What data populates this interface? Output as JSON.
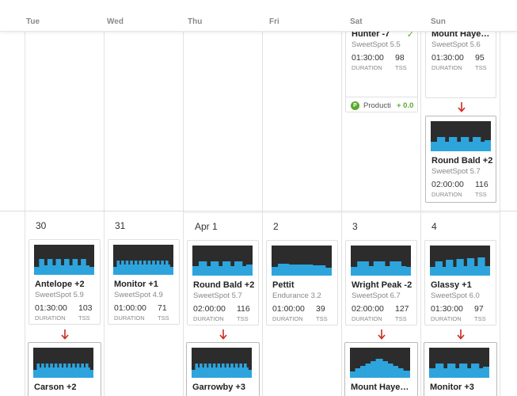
{
  "colors": {
    "graph_bg": "#2c2c2c",
    "graph_bar": "#2ea4dd",
    "arrow": "#cc2a1f",
    "check": "#5aa92e"
  },
  "days": [
    "Tue",
    "Wed",
    "Thu",
    "Fri",
    "Sat",
    "Sun"
  ],
  "week2_dates": [
    "30",
    "31",
    "Apr 1",
    "2",
    "3",
    "4"
  ],
  "labels": {
    "duration": "DURATION",
    "tss": "TSS"
  },
  "week1_sat": {
    "title": "Hunter -7",
    "subtitle": "SweetSpot 5.5",
    "duration": "01:30:00",
    "tss": "98",
    "completed_icon": "checkmark-icon",
    "check_glyph": "✓",
    "productivity": {
      "icon_letter": "P",
      "label": "Producti",
      "value": "+ 0.0"
    }
  },
  "week1_sun": [
    {
      "title": "Mount Haye…",
      "subtitle": "SweetSpot 5.6",
      "duration": "01:30:00",
      "tss": "95"
    },
    {
      "title": "Round Bald +2",
      "subtitle": "SweetSpot 5.7",
      "duration": "02:00:00",
      "tss": "116"
    }
  ],
  "week2_top": [
    {
      "title": "Antelope +2",
      "subtitle": "SweetSpot 5.9",
      "duration": "01:30:00",
      "tss": "103"
    },
    {
      "title": "Monitor +1",
      "subtitle": "SweetSpot 4.9",
      "duration": "01:00:00",
      "tss": "71"
    },
    {
      "title": "Round Bald +2",
      "subtitle": "SweetSpot 5.7",
      "duration": "02:00:00",
      "tss": "116"
    },
    {
      "title": "Pettit",
      "subtitle": "Endurance 3.2",
      "duration": "01:00:00",
      "tss": "39"
    },
    {
      "title": "Wright Peak -2",
      "subtitle": "SweetSpot 6.7",
      "duration": "02:00:00",
      "tss": "127"
    },
    {
      "title": "Glassy +1",
      "subtitle": "SweetSpot 6.0",
      "duration": "01:30:00",
      "tss": "97"
    }
  ],
  "week2_bottom": [
    {
      "title": "Carson +2"
    },
    {
      "title": "Garrowby +3"
    },
    {
      "title": "Mount Haye…"
    },
    {
      "title": "Monitor +3"
    }
  ]
}
